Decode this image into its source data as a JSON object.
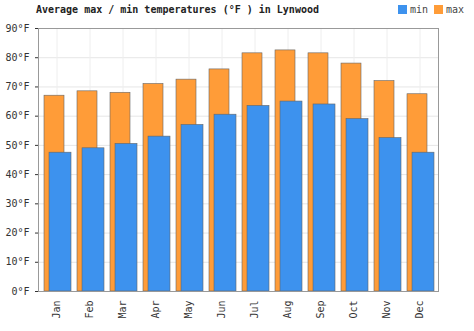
{
  "chart_data": {
    "type": "bar",
    "title": "Average max / min temperatures (°F ) in Lynwood",
    "categories": [
      "Jan",
      "Feb",
      "Mar",
      "Apr",
      "May",
      "Jun",
      "Jul",
      "Aug",
      "Sep",
      "Oct",
      "Nov",
      "Dec"
    ],
    "series": [
      {
        "name": "min",
        "color": "#3d92ee",
        "values": [
          47.5,
          49,
          50.5,
          53,
          57,
          60.5,
          63.5,
          65,
          64,
          59,
          52.5,
          47.5
        ]
      },
      {
        "name": "max",
        "color": "#ff9c38",
        "values": [
          67,
          68.5,
          68,
          71,
          72.5,
          76,
          81.5,
          82.5,
          81.5,
          78,
          72,
          67.5
        ]
      }
    ],
    "ylim": [
      0,
      90
    ],
    "yticks": [
      {
        "value": 0,
        "label": "0°F"
      },
      {
        "value": 10,
        "label": "10°F"
      },
      {
        "value": 20,
        "label": "20°F"
      },
      {
        "value": 30,
        "label": "30°F"
      },
      {
        "value": 40,
        "label": "40°F"
      },
      {
        "value": 50,
        "label": "50°F"
      },
      {
        "value": 60,
        "label": "60°F"
      },
      {
        "value": 70,
        "label": "70°F"
      },
      {
        "value": 80,
        "label": "80°F"
      },
      {
        "value": 90,
        "label": "90°F"
      }
    ],
    "grid": true,
    "legend": "top-right"
  }
}
